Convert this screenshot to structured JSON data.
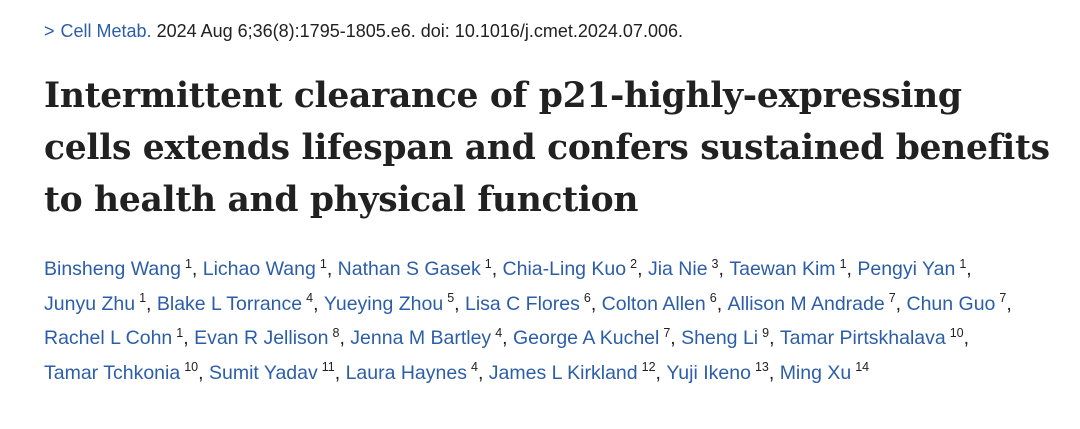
{
  "citation": {
    "chevron": ">",
    "journal": "Cell Metab.",
    "details": " 2024 Aug 6;36(8):1795-1805.e6. doi: 10.1016/j.cmet.2024.07.006."
  },
  "title": "Intermittent clearance of p21-highly-expressing cells extends lifespan and confers sustained benefits to health and physical function",
  "separator": ", ",
  "authors": [
    {
      "name": "Binsheng Wang",
      "aff": "1"
    },
    {
      "name": "Lichao Wang",
      "aff": "1"
    },
    {
      "name": "Nathan S Gasek",
      "aff": "1"
    },
    {
      "name": "Chia-Ling Kuo",
      "aff": "2"
    },
    {
      "name": "Jia Nie",
      "aff": "3"
    },
    {
      "name": "Taewan Kim",
      "aff": "1"
    },
    {
      "name": "Pengyi Yan",
      "aff": "1"
    },
    {
      "name": "Junyu Zhu",
      "aff": "1"
    },
    {
      "name": "Blake L Torrance",
      "aff": "4"
    },
    {
      "name": "Yueying Zhou",
      "aff": "5"
    },
    {
      "name": "Lisa C Flores",
      "aff": "6"
    },
    {
      "name": "Colton Allen",
      "aff": "6"
    },
    {
      "name": "Allison M Andrade",
      "aff": "7"
    },
    {
      "name": "Chun Guo",
      "aff": "7"
    },
    {
      "name": "Rachel L Cohn",
      "aff": "1"
    },
    {
      "name": "Evan R Jellison",
      "aff": "8"
    },
    {
      "name": "Jenna M Bartley",
      "aff": "4"
    },
    {
      "name": "George A Kuchel",
      "aff": "7"
    },
    {
      "name": "Sheng Li",
      "aff": "9"
    },
    {
      "name": "Tamar Pirtskhalava",
      "aff": "10"
    },
    {
      "name": "Tamar Tchkonia",
      "aff": "10"
    },
    {
      "name": "Sumit Yadav",
      "aff": "11"
    },
    {
      "name": "Laura Haynes",
      "aff": "4"
    },
    {
      "name": "James L Kirkland",
      "aff": "12"
    },
    {
      "name": "Yuji Ikeno",
      "aff": "13"
    },
    {
      "name": "Ming Xu",
      "aff": "14"
    }
  ]
}
